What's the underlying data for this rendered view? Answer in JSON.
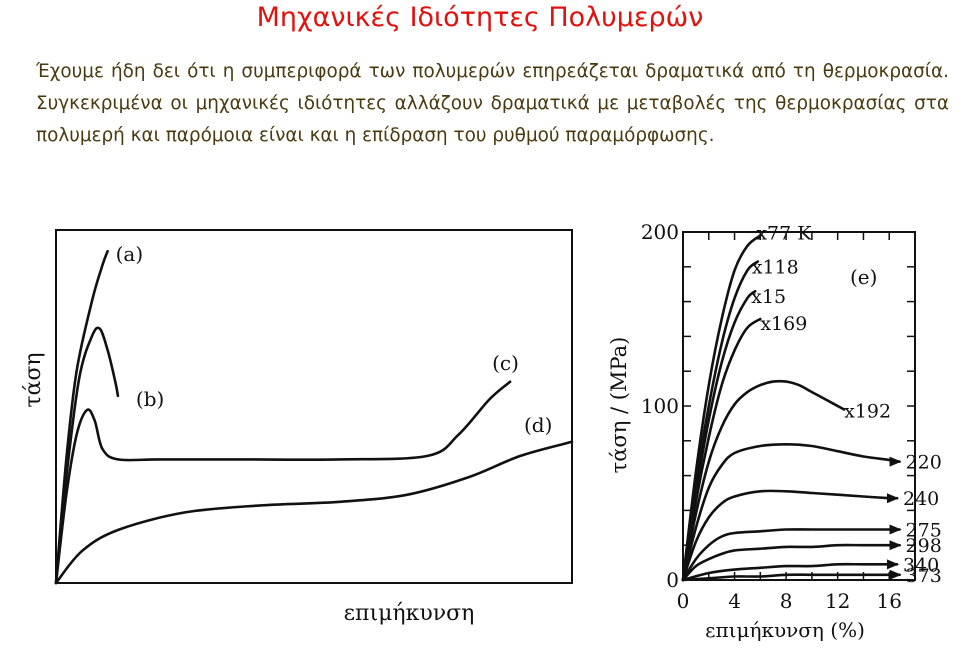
{
  "page": {
    "title": "Μηχανικές Ιδιότητες Πολυμερών",
    "intro": "Έχουμε ήδη δει ότι η συμπεριφορά των πολυμερών επηρεάζεται δραματικά από τη θερμοκρασία. Συγκεκριμένα οι μηχανικές ιδιότητες αλλάζουν δραματικά με μεταβολές της θερμοκρασίας στα πολυμερή και παρόμοια είναι και η επίδραση του ρυθμού παραμόρφωσης."
  },
  "colors": {
    "title": "#e1120e",
    "text": "#4a3a10",
    "ink": "#111111"
  },
  "chart_data": [
    {
      "type": "line",
      "xlabel": "επιμήκυνση",
      "ylabel": "τάση",
      "ticks": false,
      "series": [
        {
          "name": "(a)",
          "points": [
            [
              0,
              0
            ],
            [
              0.02,
              0.35
            ],
            [
              0.04,
              0.6
            ],
            [
              0.07,
              0.8
            ],
            [
              0.09,
              0.9
            ],
            [
              0.1,
              0.94
            ]
          ]
        },
        {
          "name": "(b)",
          "points": [
            [
              0,
              0
            ],
            [
              0.02,
              0.3
            ],
            [
              0.045,
              0.58
            ],
            [
              0.07,
              0.7
            ],
            [
              0.085,
              0.72
            ],
            [
              0.1,
              0.66
            ],
            [
              0.115,
              0.57
            ],
            [
              0.12,
              0.53
            ]
          ]
        },
        {
          "name": "(c)",
          "points": [
            [
              0,
              0
            ],
            [
              0.02,
              0.25
            ],
            [
              0.04,
              0.42
            ],
            [
              0.06,
              0.49
            ],
            [
              0.075,
              0.46
            ],
            [
              0.09,
              0.38
            ],
            [
              0.12,
              0.35
            ],
            [
              0.2,
              0.35
            ],
            [
              0.35,
              0.35
            ],
            [
              0.55,
              0.35
            ],
            [
              0.72,
              0.36
            ],
            [
              0.78,
              0.42
            ],
            [
              0.84,
              0.52
            ],
            [
              0.88,
              0.57
            ]
          ]
        },
        {
          "name": "(d)",
          "points": [
            [
              0,
              0
            ],
            [
              0.05,
              0.09
            ],
            [
              0.12,
              0.15
            ],
            [
              0.25,
              0.2
            ],
            [
              0.4,
              0.22
            ],
            [
              0.55,
              0.23
            ],
            [
              0.68,
              0.25
            ],
            [
              0.8,
              0.3
            ],
            [
              0.9,
              0.36
            ],
            [
              1.0,
              0.4
            ]
          ]
        }
      ]
    },
    {
      "type": "line",
      "label": "(e)",
      "xlabel": "επιμήκυνση (%)",
      "ylabel": "τάση / (MPa)",
      "xlim": [
        0,
        18
      ],
      "ylim": [
        0,
        200
      ],
      "xticks": [
        0,
        4,
        8,
        12,
        16
      ],
      "yticks": [
        0,
        100,
        200
      ],
      "series": [
        {
          "name": "77 K",
          "points": [
            [
              0,
              0
            ],
            [
              1,
              62
            ],
            [
              2,
              112
            ],
            [
              3,
              150
            ],
            [
              4,
              178
            ],
            [
              5,
              192
            ],
            [
              6,
              198
            ]
          ]
        },
        {
          "name": "118",
          "points": [
            [
              0,
              0
            ],
            [
              1,
              56
            ],
            [
              2,
              100
            ],
            [
              3,
              136
            ],
            [
              4,
              162
            ],
            [
              5,
              178
            ],
            [
              5.8,
              183
            ]
          ]
        },
        {
          "name": "15",
          "points": [
            [
              0,
              0
            ],
            [
              1,
              50
            ],
            [
              2,
              92
            ],
            [
              3,
              125
            ],
            [
              4,
              148
            ],
            [
              5,
              162
            ],
            [
              5.6,
              166
            ]
          ]
        },
        {
          "name": "169",
          "points": [
            [
              0,
              0
            ],
            [
              1,
              45
            ],
            [
              2,
              82
            ],
            [
              3,
              112
            ],
            [
              4,
              132
            ],
            [
              5,
              145
            ],
            [
              6,
              150
            ]
          ]
        },
        {
          "name": "192",
          "points": [
            [
              0,
              0
            ],
            [
              1,
              38
            ],
            [
              2,
              68
            ],
            [
              3,
              88
            ],
            [
              4,
              101
            ],
            [
              5,
              108
            ],
            [
              6,
              112
            ],
            [
              7,
              114
            ],
            [
              8,
              114
            ],
            [
              9,
              112
            ],
            [
              10,
              108
            ],
            [
              11,
              104
            ],
            [
              12.5,
              98
            ]
          ]
        },
        {
          "name": "220",
          "points": [
            [
              0,
              0
            ],
            [
              1,
              30
            ],
            [
              2,
              53
            ],
            [
              3,
              66
            ],
            [
              4,
              73
            ],
            [
              6,
              77
            ],
            [
              8,
              78
            ],
            [
              10,
              77
            ],
            [
              12,
              74
            ],
            [
              14,
              71
            ],
            [
              16,
              69
            ],
            [
              16.8,
              68
            ]
          ]
        },
        {
          "name": "240",
          "points": [
            [
              0,
              0
            ],
            [
              1,
              22
            ],
            [
              2,
              36
            ],
            [
              3,
              44
            ],
            [
              4,
              48
            ],
            [
              6,
              51
            ],
            [
              8,
              51
            ],
            [
              10,
              50
            ],
            [
              12,
              49
            ],
            [
              14,
              48
            ],
            [
              16,
              47
            ],
            [
              16.6,
              47
            ]
          ]
        },
        {
          "name": "275",
          "points": [
            [
              0,
              0
            ],
            [
              1,
              12
            ],
            [
              2,
              20
            ],
            [
              3,
              25
            ],
            [
              4,
              27
            ],
            [
              6,
              28
            ],
            [
              8,
              29
            ],
            [
              10,
              29
            ],
            [
              12,
              29
            ],
            [
              14,
              29
            ],
            [
              16,
              29
            ],
            [
              16.8,
              29
            ]
          ]
        },
        {
          "name": "298",
          "points": [
            [
              0,
              0
            ],
            [
              1,
              8
            ],
            [
              2,
              12
            ],
            [
              3,
              15
            ],
            [
              4,
              17
            ],
            [
              6,
              18
            ],
            [
              8,
              19
            ],
            [
              10,
              19
            ],
            [
              12,
              20
            ],
            [
              14,
              20
            ],
            [
              16,
              20
            ],
            [
              16.8,
              20
            ]
          ]
        },
        {
          "name": "340",
          "points": [
            [
              0,
              0
            ],
            [
              2,
              4
            ],
            [
              4,
              6
            ],
            [
              6,
              7
            ],
            [
              8,
              8
            ],
            [
              10,
              8
            ],
            [
              12,
              9
            ],
            [
              14,
              9
            ],
            [
              16,
              9
            ],
            [
              16.6,
              9
            ]
          ]
        },
        {
          "name": "373",
          "points": [
            [
              0,
              0
            ],
            [
              2,
              1
            ],
            [
              4,
              2
            ],
            [
              6,
              2
            ],
            [
              8,
              3
            ],
            [
              10,
              3
            ],
            [
              12,
              3
            ],
            [
              14,
              3
            ],
            [
              16,
              3
            ],
            [
              16.8,
              3
            ]
          ]
        }
      ]
    }
  ]
}
